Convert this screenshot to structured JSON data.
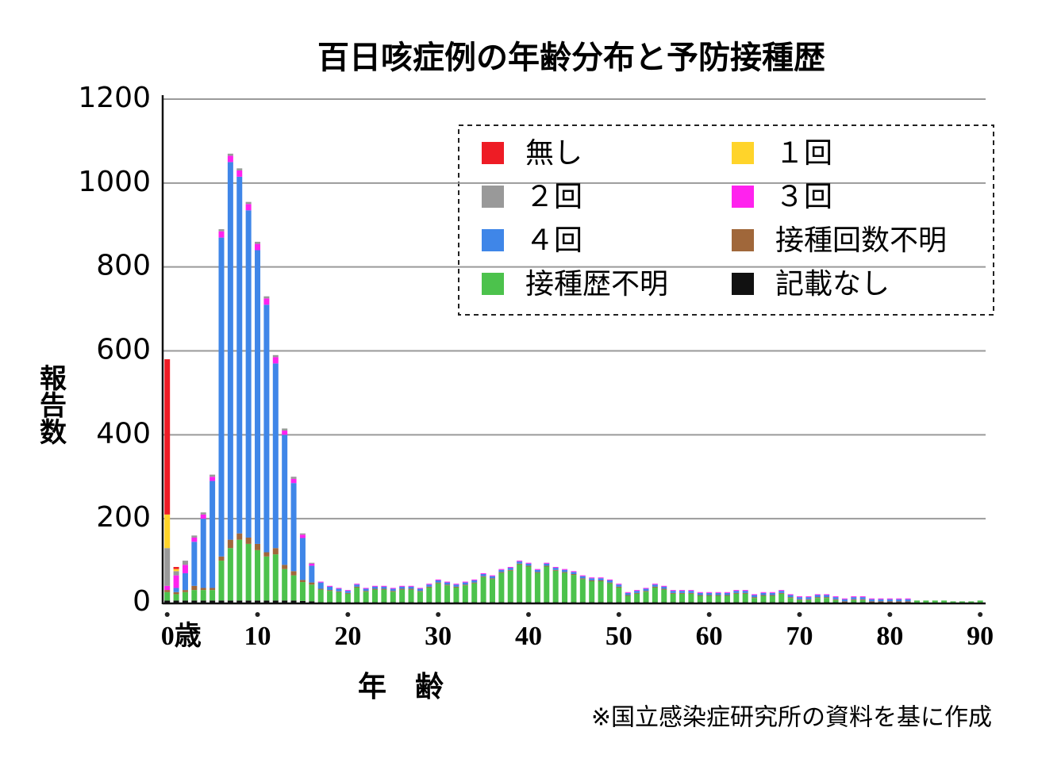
{
  "chart_data": {
    "type": "stacked_bar",
    "title": "百日咳症例の年齢分布と予防接種歴",
    "y_label": "報告数",
    "x_label": "年　齢",
    "note": "※国立感染症研究所の資料を基に作成",
    "x": [
      0,
      1,
      2,
      3,
      4,
      5,
      6,
      7,
      8,
      9,
      10,
      11,
      12,
      13,
      14,
      15,
      16,
      17,
      18,
      19,
      20,
      21,
      22,
      23,
      24,
      25,
      26,
      27,
      28,
      29,
      30,
      31,
      32,
      33,
      34,
      35,
      36,
      37,
      38,
      39,
      40,
      41,
      42,
      43,
      44,
      45,
      46,
      47,
      48,
      49,
      50,
      51,
      52,
      53,
      54,
      55,
      56,
      57,
      58,
      59,
      60,
      61,
      62,
      63,
      64,
      65,
      66,
      67,
      68,
      69,
      70,
      71,
      72,
      73,
      74,
      75,
      76,
      77,
      78,
      79,
      80,
      81,
      82,
      83,
      84,
      85,
      86,
      87,
      88,
      89,
      90
    ],
    "xlim": [
      -0.5,
      90.6
    ],
    "xticks": [
      {
        "value": 0,
        "label": "0歳"
      },
      10,
      20,
      30,
      40,
      50,
      60,
      70,
      80,
      90
    ],
    "ylim": [
      0,
      1200
    ],
    "yticks": [
      0,
      200,
      400,
      600,
      800,
      1000,
      1200
    ],
    "grid": true,
    "series": [
      {
        "name": "無し",
        "color": "#ee1c25",
        "values": [
          370,
          5,
          0,
          0,
          0,
          0,
          0,
          0,
          0,
          0,
          0,
          0,
          0,
          0,
          0,
          0,
          0,
          0,
          0,
          0,
          0,
          0,
          0,
          0,
          0,
          0,
          0,
          0,
          0,
          0,
          0,
          0,
          0,
          0,
          0,
          0,
          0,
          0,
          0,
          0,
          0,
          0,
          0,
          0,
          0,
          0,
          0,
          0,
          0,
          0,
          0,
          0,
          0,
          0,
          0,
          0,
          0,
          0,
          0,
          0,
          0,
          0,
          0,
          0,
          0,
          0,
          0,
          0,
          0,
          0,
          0,
          0,
          0,
          0,
          0,
          0,
          0,
          0,
          0,
          0,
          0,
          0,
          0,
          0,
          0,
          0,
          0,
          0,
          0,
          0,
          0
        ]
      },
      {
        "name": "１回",
        "color": "#ffd42a",
        "values": [
          80,
          5,
          0,
          0,
          0,
          0,
          0,
          0,
          0,
          0,
          0,
          0,
          0,
          0,
          0,
          0,
          0,
          0,
          0,
          0,
          0,
          0,
          0,
          0,
          0,
          0,
          0,
          0,
          0,
          0,
          0,
          0,
          0,
          0,
          0,
          0,
          0,
          0,
          0,
          0,
          0,
          0,
          0,
          0,
          0,
          0,
          0,
          0,
          0,
          0,
          0,
          0,
          0,
          0,
          0,
          0,
          0,
          0,
          0,
          0,
          0,
          0,
          0,
          0,
          0,
          0,
          0,
          0,
          0,
          0,
          0,
          0,
          0,
          0,
          0,
          0,
          0,
          0,
          0,
          0,
          0,
          0,
          0,
          0,
          0,
          0,
          0,
          0,
          0,
          0,
          0
        ]
      },
      {
        "name": "２回",
        "color": "#999999",
        "values": [
          90,
          10,
          10,
          5,
          5,
          5,
          5,
          5,
          5,
          5,
          5,
          5,
          5,
          5,
          5,
          3,
          2,
          0,
          0,
          0,
          0,
          0,
          0,
          0,
          0,
          0,
          0,
          0,
          0,
          0,
          0,
          0,
          0,
          0,
          0,
          0,
          0,
          0,
          0,
          0,
          0,
          0,
          0,
          0,
          0,
          0,
          0,
          0,
          0,
          0,
          0,
          0,
          0,
          0,
          0,
          0,
          0,
          0,
          0,
          0,
          0,
          0,
          0,
          0,
          0,
          0,
          0,
          0,
          0,
          0,
          0,
          0,
          0,
          0,
          0,
          0,
          0,
          0,
          0,
          0,
          0,
          0,
          0,
          0,
          0,
          0,
          0,
          0,
          0,
          0,
          0
        ]
      },
      {
        "name": "３回",
        "color": "#ff22ee",
        "values": [
          10,
          30,
          20,
          10,
          10,
          10,
          15,
          15,
          15,
          15,
          15,
          15,
          15,
          10,
          10,
          8,
          5,
          2,
          2,
          2,
          2,
          2,
          2,
          2,
          2,
          2,
          2,
          2,
          2,
          2,
          2,
          2,
          2,
          2,
          2,
          2,
          2,
          2,
          2,
          2,
          2,
          2,
          2,
          2,
          2,
          2,
          2,
          2,
          2,
          2,
          2,
          2,
          2,
          2,
          2,
          2,
          2,
          2,
          2,
          2,
          2,
          2,
          2,
          2,
          2,
          2,
          2,
          2,
          2,
          2,
          2,
          2,
          2,
          2,
          2,
          2,
          2,
          2,
          2,
          2,
          2,
          2,
          2,
          0,
          0,
          0,
          0,
          0,
          0,
          0,
          0
        ]
      },
      {
        "name": "４回",
        "color": "#3f86e8",
        "values": [
          0,
          10,
          40,
          105,
          165,
          255,
          760,
          900,
          850,
          780,
          700,
          590,
          440,
          310,
          210,
          100,
          40,
          15,
          8,
          6,
          5,
          5,
          5,
          5,
          5,
          5,
          5,
          5,
          5,
          5,
          5,
          5,
          5,
          5,
          5,
          5,
          5,
          5,
          5,
          5,
          5,
          5,
          5,
          5,
          5,
          5,
          5,
          5,
          5,
          5,
          5,
          5,
          5,
          5,
          5,
          5,
          5,
          5,
          5,
          5,
          5,
          5,
          5,
          5,
          5,
          5,
          5,
          5,
          5,
          5,
          5,
          5,
          5,
          5,
          5,
          5,
          5,
          5,
          5,
          5,
          5,
          5,
          5,
          0,
          0,
          0,
          0,
          0,
          0,
          0,
          0
        ]
      },
      {
        "name": "接種回数不明",
        "color": "#a0673a",
        "values": [
          5,
          5,
          5,
          10,
          5,
          5,
          10,
          20,
          15,
          15,
          15,
          10,
          15,
          10,
          10,
          5,
          5,
          2,
          2,
          2,
          2,
          2,
          2,
          2,
          2,
          2,
          2,
          2,
          2,
          2,
          2,
          2,
          2,
          2,
          2,
          2,
          2,
          2,
          2,
          2,
          2,
          2,
          2,
          2,
          2,
          2,
          2,
          2,
          2,
          2,
          2,
          2,
          2,
          2,
          2,
          2,
          2,
          2,
          2,
          2,
          2,
          2,
          2,
          2,
          2,
          2,
          2,
          2,
          2,
          2,
          2,
          2,
          2,
          2,
          2,
          2,
          2,
          2,
          2,
          2,
          2,
          2,
          2,
          0,
          0,
          0,
          0,
          0,
          0,
          0,
          0
        ]
      },
      {
        "name": "接種歴不明",
        "color": "#4cc24c",
        "values": [
          20,
          15,
          20,
          25,
          25,
          25,
          95,
          125,
          145,
          135,
          120,
          105,
          110,
          75,
          60,
          45,
          40,
          30,
          27,
          24,
          20,
          35,
          25,
          30,
          30,
          25,
          30,
          30,
          25,
          35,
          45,
          40,
          35,
          40,
          45,
          60,
          55,
          70,
          75,
          90,
          85,
          70,
          85,
          75,
          70,
          65,
          55,
          50,
          50,
          45,
          35,
          15,
          20,
          25,
          35,
          30,
          20,
          20,
          20,
          15,
          15,
          15,
          15,
          20,
          20,
          10,
          15,
          15,
          20,
          10,
          5,
          5,
          10,
          10,
          5,
          0,
          5,
          5,
          0,
          0,
          0,
          0,
          0,
          5,
          5,
          5,
          5,
          3,
          3,
          3,
          5
        ]
      },
      {
        "name": "記載なし",
        "color": "#111111",
        "values": [
          5,
          5,
          5,
          5,
          5,
          5,
          5,
          5,
          5,
          5,
          5,
          5,
          5,
          5,
          5,
          4,
          3,
          1,
          1,
          1,
          1,
          1,
          1,
          1,
          1,
          1,
          1,
          1,
          1,
          1,
          1,
          1,
          1,
          1,
          1,
          1,
          1,
          1,
          1,
          1,
          1,
          1,
          1,
          1,
          1,
          1,
          1,
          1,
          1,
          1,
          1,
          1,
          1,
          1,
          1,
          1,
          1,
          1,
          1,
          1,
          1,
          1,
          1,
          1,
          1,
          1,
          1,
          1,
          1,
          1,
          1,
          1,
          1,
          1,
          1,
          1,
          1,
          1,
          1,
          1,
          1,
          1,
          1,
          0,
          0,
          0,
          0,
          0,
          0,
          0,
          0
        ]
      }
    ]
  }
}
